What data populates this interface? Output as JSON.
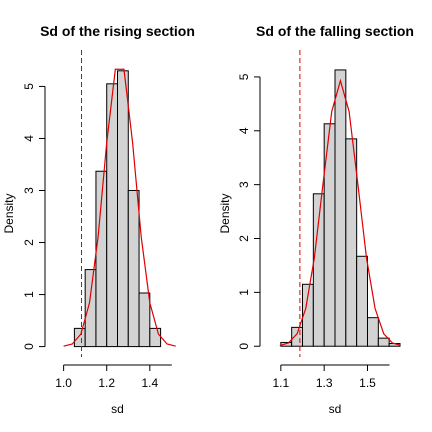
{
  "chart_data": [
    {
      "type": "histogram",
      "title": "Sd of the rising section",
      "x_label": "sd",
      "y_label": "Density",
      "bins": [
        1.05,
        1.1,
        1.15,
        1.2,
        1.25,
        1.3,
        1.35,
        1.4,
        1.45
      ],
      "values": [
        0.35,
        1.48,
        3.37,
        5.05,
        5.3,
        3.0,
        1.03,
        0.35
      ],
      "color": "#d3d3d3",
      "curve": {
        "color": "#e00000",
        "x": [
          1.0,
          1.04,
          1.08,
          1.12,
          1.16,
          1.2,
          1.24,
          1.28,
          1.32,
          1.36,
          1.4,
          1.44,
          1.48,
          1.52
        ],
        "values": [
          0.008,
          0.05,
          0.24,
          0.84,
          2.11,
          3.92,
          5.33,
          5.33,
          3.92,
          2.11,
          0.84,
          0.24,
          0.05,
          0.008
        ]
      },
      "vline": 1.083,
      "xlim": [
        0.96,
        1.54
      ],
      "ylim": [
        -0.2,
        5.7
      ],
      "xticks": [
        {
          "value": 1,
          "label": "1.0"
        },
        1.2,
        1.4
      ],
      "yticks": [
        0,
        1,
        2,
        3,
        4,
        5
      ]
    },
    {
      "type": "histogram",
      "title": "Sd of the falling section",
      "x_label": "sd",
      "y_label": "Density",
      "bins": [
        1.1,
        1.15,
        1.2,
        1.25,
        1.3,
        1.35,
        1.4,
        1.45,
        1.5,
        1.55,
        1.6,
        1.65
      ],
      "values": [
        0.07,
        0.35,
        1.15,
        2.83,
        4.13,
        5.13,
        3.85,
        1.67,
        0.53,
        0.15,
        0.05
      ],
      "color": "#d3d3d3",
      "curve": {
        "color": "#e00000",
        "x": [
          1.095,
          1.135,
          1.175,
          1.215,
          1.255,
          1.295,
          1.335,
          1.375,
          1.415,
          1.455,
          1.495,
          1.535,
          1.575,
          1.615,
          1.655
        ],
        "values": [
          0.012,
          0.06,
          0.23,
          0.7,
          1.65,
          3.03,
          4.36,
          4.93,
          4.36,
          3.03,
          1.65,
          0.7,
          0.23,
          0.06,
          0.012
        ]
      },
      "vline": 1.188,
      "xlim": [
        1.05,
        1.65
      ],
      "ylim": [
        -0.2,
        5.5
      ],
      "xticks": [
        1.1,
        1.3,
        1.5
      ],
      "yticks": [
        0,
        1,
        2,
        3,
        4,
        5
      ]
    }
  ]
}
